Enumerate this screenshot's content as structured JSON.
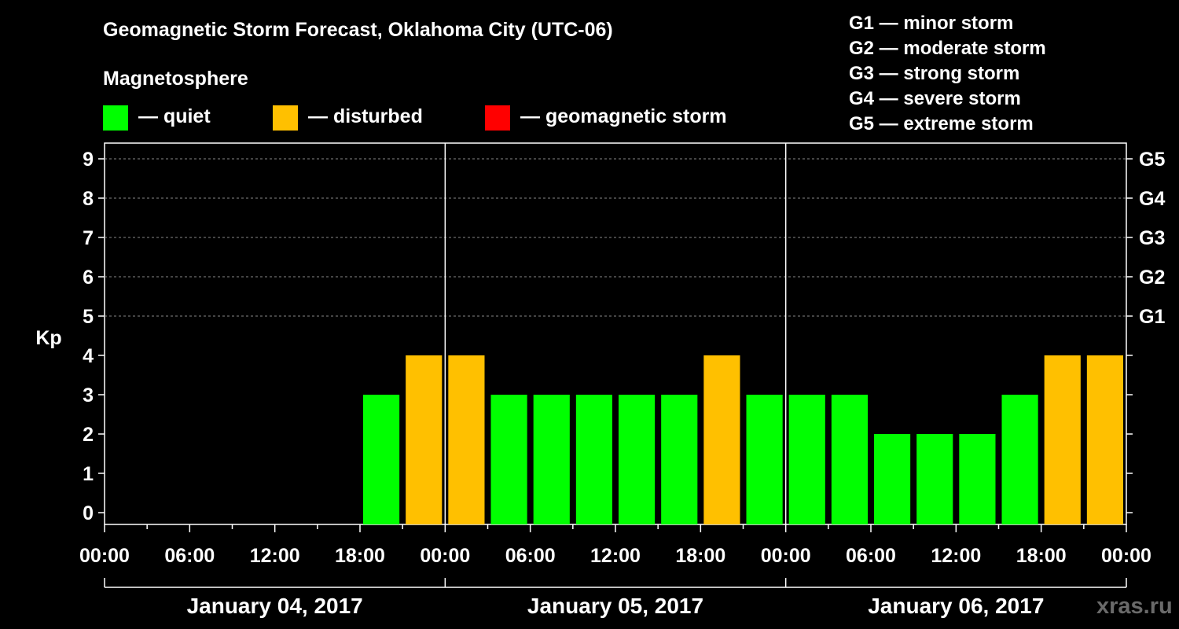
{
  "title": "Geomagnetic Storm Forecast, Oklahoma City (UTC-06)",
  "subtitle": "Magnetosphere",
  "legend": [
    {
      "label": "— quiet",
      "color": "#00ff00"
    },
    {
      "label": "— disturbed",
      "color": "#ffc000"
    },
    {
      "label": "— geomagnetic storm",
      "color": "#ff0000"
    }
  ],
  "g_scale": [
    "G1 — minor storm",
    "G2 — moderate storm",
    "G3 — strong storm",
    "G4 — severe storm",
    "G5 — extreme storm"
  ],
  "watermark": "xras.ru",
  "chart_data": {
    "type": "bar",
    "ylabel": "Kp",
    "ylim": [
      0,
      9
    ],
    "yticks": [
      "0",
      "1",
      "2",
      "3",
      "4",
      "5",
      "6",
      "7",
      "8",
      "9"
    ],
    "right_ticks": [
      {
        "kp": 5,
        "label": "G1"
      },
      {
        "kp": 6,
        "label": "G2"
      },
      {
        "kp": 7,
        "label": "G3"
      },
      {
        "kp": 8,
        "label": "G4"
      },
      {
        "kp": 9,
        "label": "G5"
      }
    ],
    "xtick_labels": [
      "00:00",
      "06:00",
      "12:00",
      "18:00",
      "00:00",
      "06:00",
      "12:00",
      "18:00",
      "00:00",
      "06:00",
      "12:00",
      "18:00",
      "00:00"
    ],
    "days": [
      "January 04, 2017",
      "January 05, 2017",
      "January 06, 2017"
    ],
    "slots_per_day": 8,
    "values": [
      null,
      null,
      null,
      null,
      null,
      null,
      3,
      4,
      4,
      3,
      3,
      3,
      3,
      3,
      4,
      3,
      3,
      3,
      2,
      2,
      2,
      3,
      4,
      4
    ],
    "colors": {
      "quiet": "#00ff00",
      "disturbed": "#ffc000",
      "storm": "#ff0000"
    }
  }
}
